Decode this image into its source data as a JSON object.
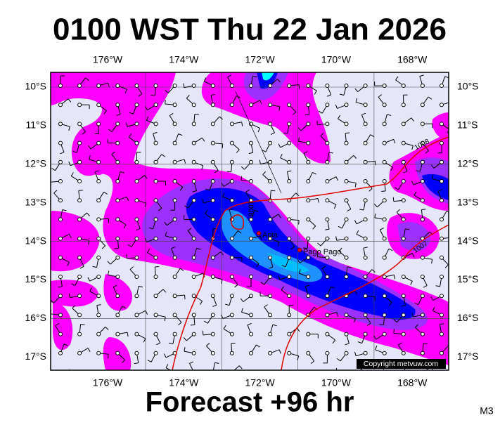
{
  "title": "0100 WST Thu 22 Jan 2026",
  "map": {
    "lon_labels": [
      "176°W",
      "174°W",
      "172°W",
      "170°W",
      "168°W"
    ],
    "lat_labels": [
      "10°S",
      "11°S",
      "12°S",
      "13°S",
      "14°S",
      "15°S",
      "16°S",
      "17°S"
    ],
    "places": [
      {
        "name": "Apia"
      },
      {
        "name": "Pago Pago"
      }
    ],
    "isobars": [
      {
        "label": "1008"
      },
      {
        "label": "1007"
      },
      {
        "label": "1008"
      }
    ],
    "copyright": "Copyright metvuw.com"
  },
  "footer": {
    "forecast": "Forecast +96 hr",
    "model": "M3"
  }
}
